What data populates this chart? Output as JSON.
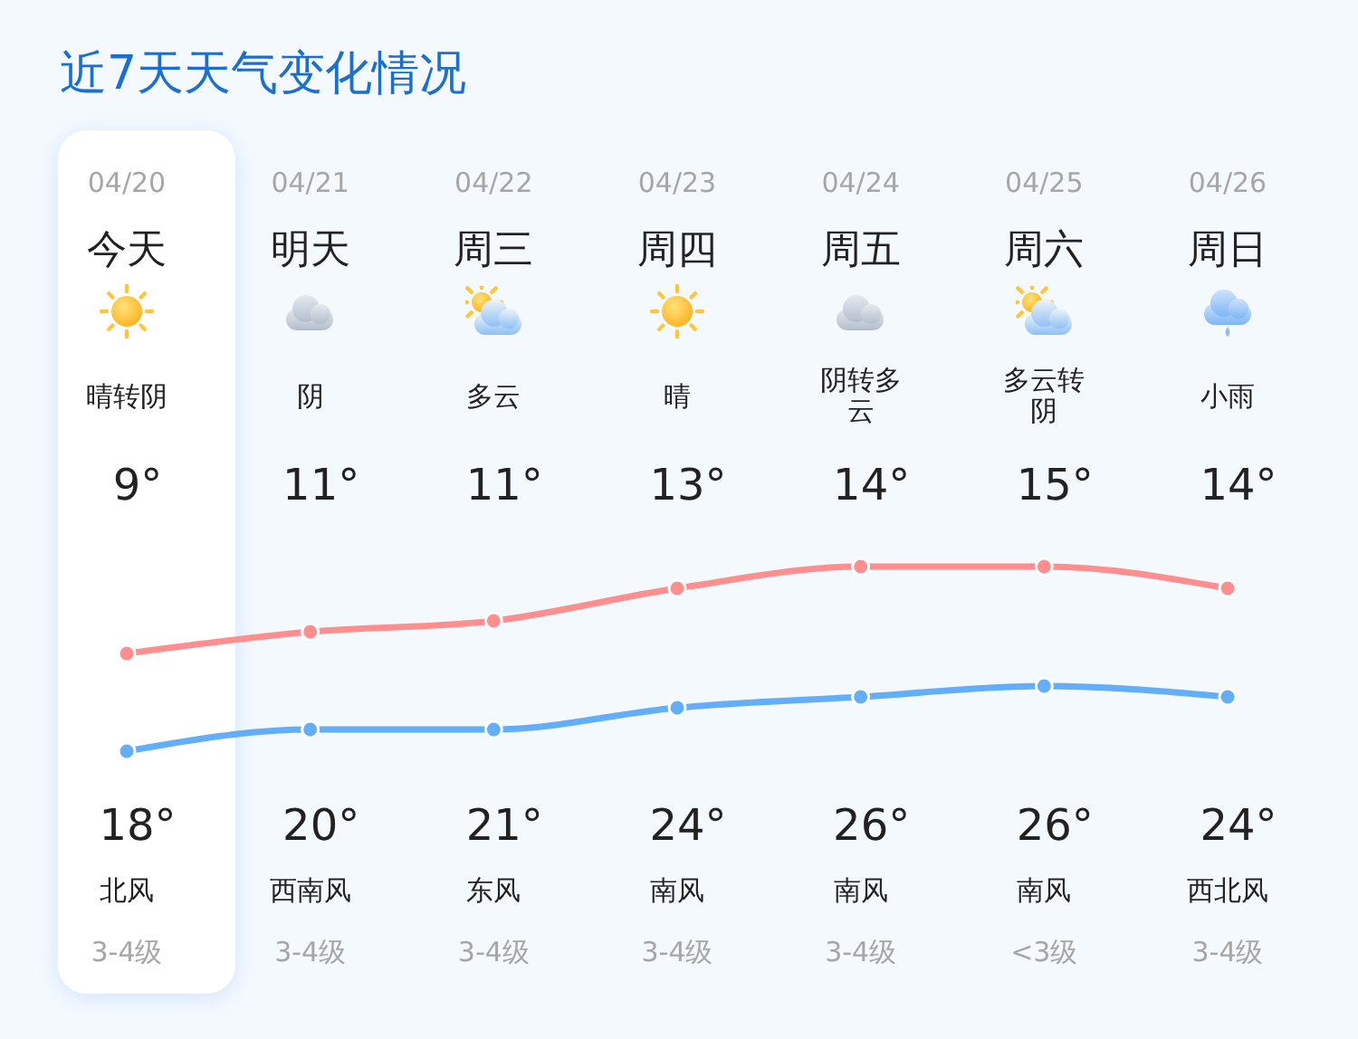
{
  "chart_data": {
    "type": "line",
    "title": "近7天天气变化情况",
    "categories": [
      "今天",
      "明天",
      "周三",
      "周四",
      "周五",
      "周六",
      "周日"
    ],
    "series": [
      {
        "color": "#62aefa",
        "values": [
          9,
          11,
          11,
          13,
          14,
          15,
          14
        ],
        "value_labels": [
          "9°",
          "11°",
          "11°",
          "13°",
          "14°",
          "15°",
          "14°"
        ]
      },
      {
        "color": "#ff8f8f",
        "values": [
          18,
          20,
          21,
          24,
          26,
          26,
          24
        ],
        "value_labels": [
          "18°",
          "20°",
          "21°",
          "24°",
          "26°",
          "26°",
          "24°"
        ]
      }
    ],
    "marker": "circle",
    "line_style": "solid",
    "tick_labels": "x",
    "annotations": [
      "04/20",
      "04/21",
      "04/22",
      "04/23",
      "04/24",
      "04/25",
      "04/26",
      "晴转阴",
      "阴",
      "多云",
      "晴",
      "阴转多云",
      "多云转阴",
      "小雨",
      "北风",
      "西南风",
      "东风",
      "南风",
      "南风",
      "南风",
      "西北风",
      "3-4级",
      "3-4级",
      "3-4级",
      "3-4级",
      "3-4级",
      "<3级",
      "3-4级"
    ]
  }
}
